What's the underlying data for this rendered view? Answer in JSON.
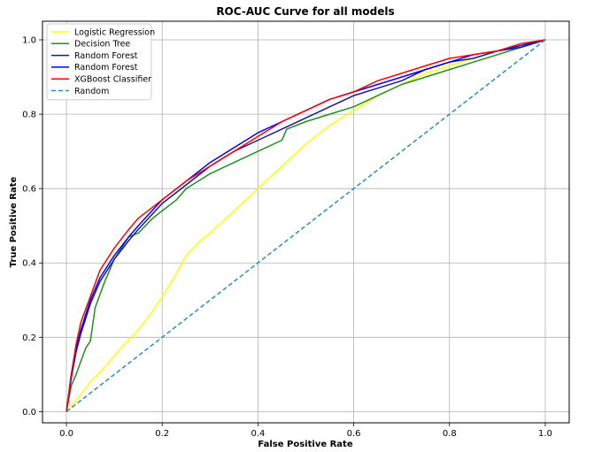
{
  "chart_data": {
    "type": "line",
    "title": "ROC-AUC Curve for all models",
    "xlabel": "False Positive Rate",
    "ylabel": "True Positive Rate",
    "xlim": [
      -0.05,
      1.05
    ],
    "ylim": [
      -0.03,
      1.05
    ],
    "xticks": [
      "0.0",
      "0.2",
      "0.4",
      "0.6",
      "0.8",
      "1.0"
    ],
    "yticks": [
      "0.0",
      "0.2",
      "0.4",
      "0.6",
      "0.8",
      "1.0"
    ],
    "grid": true,
    "legend_position": "top-left",
    "series": [
      {
        "name": "Logistic Regression",
        "color": "#ffff00",
        "dash": "solid",
        "x": [
          0,
          0.02,
          0.05,
          0.08,
          0.1,
          0.12,
          0.15,
          0.18,
          0.2,
          0.22,
          0.25,
          0.28,
          0.3,
          0.35,
          0.4,
          0.45,
          0.5,
          0.55,
          0.6,
          0.65,
          0.7,
          0.75,
          0.8,
          0.85,
          0.9,
          0.95,
          1.0
        ],
        "y": [
          0,
          0.03,
          0.08,
          0.12,
          0.15,
          0.18,
          0.22,
          0.27,
          0.31,
          0.35,
          0.42,
          0.46,
          0.48,
          0.54,
          0.6,
          0.66,
          0.72,
          0.77,
          0.81,
          0.85,
          0.88,
          0.91,
          0.93,
          0.95,
          0.97,
          0.985,
          1.0
        ]
      },
      {
        "name": "Decision Tree",
        "color": "#1f8f1f",
        "dash": "solid",
        "x": [
          0,
          0.01,
          0.02,
          0.04,
          0.05,
          0.06,
          0.08,
          0.1,
          0.13,
          0.15,
          0.18,
          0.2,
          0.23,
          0.25,
          0.3,
          0.35,
          0.4,
          0.45,
          0.46,
          0.5,
          0.55,
          0.6,
          0.65,
          0.7,
          0.75,
          0.8,
          0.85,
          0.9,
          0.95,
          1.0
        ],
        "y": [
          0,
          0.07,
          0.1,
          0.17,
          0.19,
          0.28,
          0.35,
          0.41,
          0.47,
          0.48,
          0.52,
          0.54,
          0.57,
          0.6,
          0.64,
          0.67,
          0.7,
          0.73,
          0.76,
          0.78,
          0.8,
          0.82,
          0.85,
          0.88,
          0.9,
          0.92,
          0.94,
          0.96,
          0.98,
          1.0
        ]
      },
      {
        "name": "Random Forest",
        "color": "#1a1a8c",
        "dash": "solid",
        "x": [
          0,
          0.01,
          0.02,
          0.03,
          0.05,
          0.07,
          0.1,
          0.13,
          0.15,
          0.2,
          0.25,
          0.3,
          0.35,
          0.4,
          0.45,
          0.5,
          0.55,
          0.6,
          0.65,
          0.7,
          0.75,
          0.8,
          0.85,
          0.9,
          0.95,
          1.0
        ],
        "y": [
          0,
          0.09,
          0.16,
          0.21,
          0.29,
          0.35,
          0.41,
          0.46,
          0.49,
          0.56,
          0.61,
          0.66,
          0.7,
          0.73,
          0.76,
          0.79,
          0.82,
          0.85,
          0.87,
          0.89,
          0.92,
          0.94,
          0.95,
          0.97,
          0.98,
          1.0
        ]
      },
      {
        "name": "Random Forest",
        "color": "#0000ff",
        "dash": "solid",
        "x": [
          0,
          0.01,
          0.02,
          0.03,
          0.05,
          0.07,
          0.1,
          0.13,
          0.15,
          0.2,
          0.25,
          0.3,
          0.35,
          0.4,
          0.45,
          0.5,
          0.55,
          0.6,
          0.65,
          0.7,
          0.75,
          0.8,
          0.85,
          0.9,
          0.95,
          1.0
        ],
        "y": [
          0,
          0.1,
          0.17,
          0.22,
          0.3,
          0.36,
          0.42,
          0.47,
          0.5,
          0.57,
          0.62,
          0.67,
          0.71,
          0.75,
          0.78,
          0.81,
          0.84,
          0.86,
          0.88,
          0.9,
          0.92,
          0.94,
          0.96,
          0.97,
          0.985,
          1.0
        ]
      },
      {
        "name": "XGBoost Classifier",
        "color": "#ff0000",
        "dash": "solid",
        "x": [
          0,
          0.01,
          0.02,
          0.03,
          0.05,
          0.07,
          0.1,
          0.13,
          0.15,
          0.2,
          0.25,
          0.3,
          0.35,
          0.4,
          0.45,
          0.5,
          0.55,
          0.6,
          0.65,
          0.7,
          0.75,
          0.8,
          0.85,
          0.9,
          0.95,
          1.0
        ],
        "y": [
          0,
          0.1,
          0.18,
          0.24,
          0.31,
          0.38,
          0.44,
          0.49,
          0.52,
          0.57,
          0.62,
          0.66,
          0.7,
          0.74,
          0.78,
          0.81,
          0.84,
          0.86,
          0.89,
          0.91,
          0.93,
          0.95,
          0.96,
          0.97,
          0.99,
          1.0
        ]
      },
      {
        "name": "Random",
        "color": "#2b8cc4",
        "dash": "dashed",
        "x": [
          0,
          1
        ],
        "y": [
          0,
          1
        ]
      }
    ]
  }
}
